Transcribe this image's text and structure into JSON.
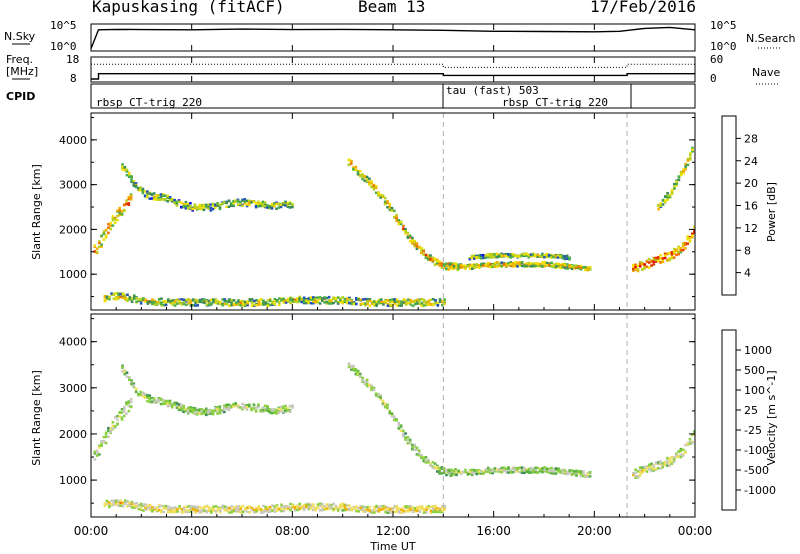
{
  "header": {
    "station": "Kapuskasing (fitACF)",
    "beam": "Beam 13",
    "date": "17/Feb/2016"
  },
  "panels": {
    "noise": {
      "left_label": "N.Sky",
      "right_label": "N.Search",
      "left_ticks": [
        "10^5",
        "10^0"
      ],
      "right_ticks": [
        "10^5",
        "10^0"
      ]
    },
    "freq": {
      "left_label_1": "Freq.",
      "left_label_2": "[MHz]",
      "right_label": "Nave",
      "left_ticks": [
        "18",
        "8"
      ],
      "right_ticks": [
        "60",
        "0"
      ]
    },
    "cpid": {
      "label": "CPID",
      "segments": [
        {
          "text": "rbsp CT-trig 220",
          "start_h": 0.0,
          "end_h": 14.0
        },
        {
          "text": "tau (fast) 503",
          "start_h": 14.0,
          "end_h": 21.3
        },
        {
          "text": "rbsp CT-trig 220",
          "start_h": 14.0,
          "end_h": 21.3
        }
      ]
    }
  },
  "axes": {
    "ylabel": "Slant Range [km]",
    "xlabel": "Time UT",
    "xticks": [
      "00:00",
      "04:00",
      "08:00",
      "12:00",
      "16:00",
      "20:00",
      "00:00"
    ],
    "yticks": [
      "1000",
      "2000",
      "3000",
      "4000"
    ],
    "xlim_hours": [
      0,
      24
    ],
    "ylim_km": [
      200,
      4600
    ]
  },
  "colorbars": {
    "power": {
      "title": "Power [dB]",
      "ticks": [
        "4",
        "8",
        "12",
        "16",
        "20",
        "24",
        "28"
      ],
      "colors": [
        "#1010e0",
        "#2050c0",
        "#3a8a5a",
        "#4aae4a",
        "#b8d020",
        "#f0e000",
        "#f0b000",
        "#f07000",
        "#e03000",
        "#e00000"
      ]
    },
    "velocity": {
      "title": "Velocity [m s^-1]",
      "ticks": [
        "1000",
        "500",
        "100",
        "25",
        "-25",
        "-100",
        "-500",
        "-1000"
      ],
      "colors": [
        "#1040c0",
        "#2a6a9a",
        "#3a8a5a",
        "#5ab040",
        "#8ad040",
        "#c8c8c0",
        "#f0e060",
        "#f0b000",
        "#f07010",
        "#e03000",
        "#e00000"
      ]
    }
  },
  "chart_data": [
    {
      "type": "line",
      "name": "noise",
      "x_hours": [
        0,
        0.3,
        1,
        2,
        4,
        6,
        8,
        10,
        12,
        14,
        16,
        18,
        20,
        21,
        22,
        23,
        24
      ],
      "series": [
        {
          "values_log10": [
            0.3,
            4.2,
            4.3,
            4.25,
            4.2,
            4.35,
            4.25,
            4.3,
            4.2,
            4.1,
            3.9,
            3.85,
            3.8,
            3.9,
            4.5,
            4.7,
            4.2
          ]
        }
      ],
      "ylim_log10": [
        0,
        5
      ]
    },
    {
      "type": "line",
      "name": "frequency",
      "series": [
        {
          "x_hours": [
            0,
            0.3,
            0.3,
            14.0,
            14.0,
            21.3,
            21.3,
            24
          ],
          "values_mhz": [
            8.5,
            8.5,
            11.0,
            11.0,
            10.2,
            10.2,
            11.0,
            11.0
          ]
        },
        {
          "x_hours": [
            0,
            0.3,
            14.0,
            14.0,
            21.3,
            21.3,
            24
          ],
          "values_nave": [
            45,
            45,
            45,
            36,
            36,
            45,
            45
          ]
        }
      ],
      "ylim_mhz": [
        8,
        18
      ],
      "ylim_nave": [
        0,
        60
      ]
    },
    {
      "type": "heatmap",
      "name": "power",
      "title": "",
      "x_unit": "hours UT",
      "y_unit": "km",
      "bands": [
        {
          "x": [
            1.2,
            1.5,
            1.8,
            2.2,
            2.8,
            3.5,
            4.2,
            5.0,
            5.8,
            6.5,
            7.3,
            8.0
          ],
          "y": [
            3400,
            3150,
            2900,
            2750,
            2700,
            2550,
            2450,
            2500,
            2600,
            2550,
            2500,
            2550
          ],
          "width_km": 150,
          "level": 0.45
        },
        {
          "x": [
            0.1,
            0.4,
            0.7,
            1.0,
            1.3,
            1.6
          ],
          "y": [
            1500,
            1750,
            2050,
            2300,
            2500,
            2700
          ],
          "width_km": 250,
          "level": 0.65
        },
        {
          "x": [
            10.2,
            10.6,
            11.0,
            11.4,
            11.8,
            12.2,
            12.6,
            13.0,
            13.4,
            13.8,
            14.2,
            14.6
          ],
          "y": [
            3500,
            3250,
            3050,
            2800,
            2500,
            2150,
            1800,
            1550,
            1350,
            1200,
            1150,
            1150
          ],
          "width_km": 150,
          "level": 0.6
        },
        {
          "x": [
            14.2,
            15.0,
            16.0,
            17.0,
            18.0,
            19.0,
            19.8
          ],
          "y": [
            1150,
            1150,
            1200,
            1200,
            1200,
            1150,
            1100
          ],
          "width_km": 100,
          "level": 0.55
        },
        {
          "x": [
            15.0,
            16.0,
            17.0,
            18.0,
            19.0
          ],
          "y": [
            1350,
            1400,
            1400,
            1400,
            1350
          ],
          "width_km": 80,
          "level": 0.45
        },
        {
          "x": [
            21.5,
            22.0,
            22.5,
            23.0,
            23.5,
            24.0
          ],
          "y": [
            1100,
            1200,
            1300,
            1400,
            1600,
            2000
          ],
          "width_km": 200,
          "level": 0.75
        },
        {
          "x": [
            22.5,
            23.0,
            23.3,
            23.6,
            23.9
          ],
          "y": [
            2500,
            2800,
            3100,
            3400,
            3800
          ],
          "width_km": 150,
          "level": 0.5
        },
        {
          "x": [
            0.5,
            1.0,
            1.5,
            2.0,
            3.0,
            4.0,
            5.0,
            6.0,
            7.0,
            8.0,
            9.0,
            10.0,
            11.0,
            12.0,
            13.0,
            14.0
          ],
          "y": [
            450,
            500,
            450,
            400,
            350,
            350,
            350,
            350,
            350,
            400,
            400,
            400,
            350,
            350,
            350,
            350
          ],
          "width_km": 150,
          "level": 0.5
        }
      ]
    },
    {
      "type": "heatmap",
      "name": "velocity",
      "title": "",
      "x_unit": "hours UT",
      "y_unit": "km",
      "bands": [
        {
          "x": [
            1.2,
            1.5,
            1.8,
            2.2,
            2.8,
            3.5,
            4.2,
            5.0,
            5.8,
            6.5,
            7.3,
            8.0
          ],
          "y": [
            3400,
            3150,
            2900,
            2750,
            2700,
            2550,
            2450,
            2500,
            2600,
            2550,
            2500,
            2550
          ],
          "width_km": 150,
          "level": 0.5
        },
        {
          "x": [
            0.1,
            0.4,
            0.7,
            1.0,
            1.3,
            1.6
          ],
          "y": [
            1500,
            1750,
            2050,
            2300,
            2500,
            2700
          ],
          "width_km": 250,
          "level": 0.5
        },
        {
          "x": [
            10.2,
            10.6,
            11.0,
            11.4,
            11.8,
            12.2,
            12.6,
            13.0,
            13.4,
            13.8,
            14.2,
            14.6
          ],
          "y": [
            3500,
            3250,
            3050,
            2800,
            2500,
            2150,
            1800,
            1550,
            1350,
            1200,
            1150,
            1150
          ],
          "width_km": 150,
          "level": 0.5
        },
        {
          "x": [
            14.2,
            15.0,
            16.0,
            17.0,
            18.0,
            19.0,
            19.8
          ],
          "y": [
            1150,
            1150,
            1200,
            1200,
            1200,
            1150,
            1100
          ],
          "width_km": 120,
          "level": 0.5
        },
        {
          "x": [
            21.5,
            22.0,
            22.5,
            23.0,
            23.5,
            24.0
          ],
          "y": [
            1100,
            1200,
            1300,
            1400,
            1600,
            2000
          ],
          "width_km": 200,
          "level": 0.55
        },
        {
          "x": [
            0.5,
            1.0,
            1.5,
            2.0,
            3.0,
            4.0,
            5.0,
            6.0,
            7.0,
            8.0,
            9.0,
            10.0,
            11.0,
            12.0,
            13.0,
            14.0
          ],
          "y": [
            450,
            500,
            450,
            400,
            350,
            350,
            350,
            350,
            350,
            400,
            400,
            400,
            350,
            350,
            350,
            350
          ],
          "width_km": 150,
          "level": 0.62
        }
      ]
    }
  ]
}
